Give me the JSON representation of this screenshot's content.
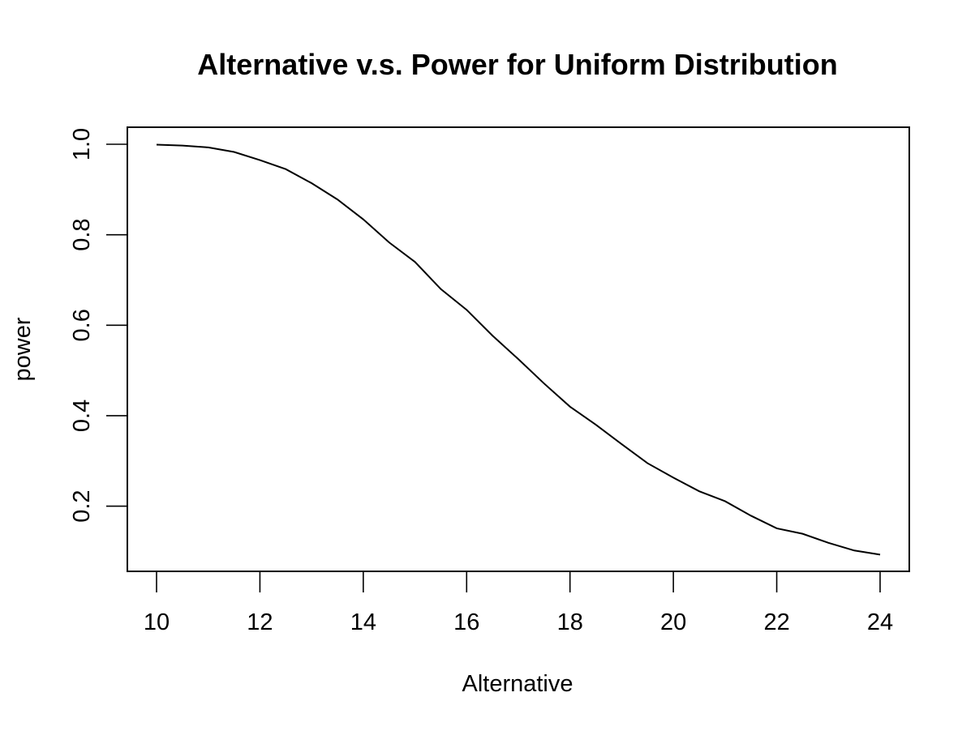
{
  "chart_data": {
    "type": "line",
    "title": "Alternative v.s. Power for Uniform Distribution",
    "xlabel": "Alternative",
    "ylabel": "power",
    "xlim": [
      10,
      24
    ],
    "ylim": [
      0.09,
      1.0
    ],
    "x_ticks": [
      "10",
      "12",
      "14",
      "16",
      "18",
      "20",
      "22",
      "24"
    ],
    "y_ticks": [
      "0.2",
      "0.4",
      "0.6",
      "0.8",
      "1.0"
    ],
    "grid": false,
    "legend": "none",
    "series": [
      {
        "color": "#000000",
        "x": [
          10,
          10.5,
          11,
          11.5,
          12,
          12.5,
          13,
          13.5,
          14,
          14.5,
          15,
          15.5,
          16,
          16.5,
          17,
          17.5,
          18,
          18.5,
          19,
          19.5,
          20,
          20.5,
          21,
          21.5,
          22,
          22.5,
          23,
          23.5,
          24
        ],
        "y": [
          0.999,
          0.997,
          0.993,
          0.983,
          0.965,
          0.945,
          0.914,
          0.878,
          0.834,
          0.783,
          0.74,
          0.68,
          0.634,
          0.577,
          0.525,
          0.471,
          0.42,
          0.38,
          0.337,
          0.295,
          0.263,
          0.233,
          0.211,
          0.179,
          0.151,
          0.139,
          0.119,
          0.102,
          0.093
        ]
      }
    ]
  }
}
